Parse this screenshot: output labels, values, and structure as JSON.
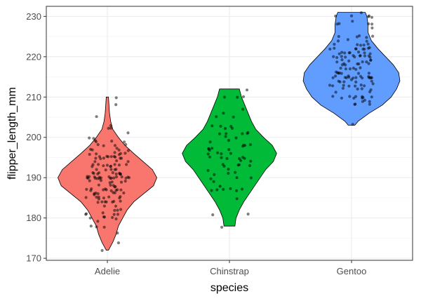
{
  "chart_data": {
    "type": "violin",
    "title": "",
    "xlabel": "species",
    "ylabel": "flipper_length_mm",
    "ylim": [
      169.5,
      232.5
    ],
    "yticks": [
      170,
      180,
      190,
      200,
      210,
      220,
      230
    ],
    "grid": true,
    "categories": [
      "Adelie",
      "Chinstrap",
      "Gentoo"
    ],
    "colors": {
      "Adelie": "#F8766D",
      "Chinstrap": "#00BA38",
      "Gentoo": "#619CFF"
    },
    "violins": [
      {
        "species": "Adelie",
        "color": "#F8766D",
        "min": 172,
        "max": 210,
        "profile": [
          [
            172,
            0.02
          ],
          [
            174,
            0.1
          ],
          [
            176,
            0.16
          ],
          [
            178,
            0.2
          ],
          [
            180,
            0.28
          ],
          [
            182,
            0.36
          ],
          [
            184,
            0.48
          ],
          [
            186,
            0.66
          ],
          [
            188,
            0.84
          ],
          [
            190,
            0.9
          ],
          [
            192,
            0.82
          ],
          [
            194,
            0.65
          ],
          [
            196,
            0.48
          ],
          [
            198,
            0.32
          ],
          [
            200,
            0.2
          ],
          [
            202,
            0.1
          ],
          [
            204,
            0.06
          ],
          [
            206,
            0.04
          ],
          [
            208,
            0.03
          ],
          [
            210,
            0.02
          ]
        ]
      },
      {
        "species": "Chinstrap",
        "color": "#00BA38",
        "min": 178,
        "max": 212,
        "profile": [
          [
            178,
            0.1
          ],
          [
            180,
            0.12
          ],
          [
            182,
            0.18
          ],
          [
            184,
            0.26
          ],
          [
            186,
            0.36
          ],
          [
            188,
            0.46
          ],
          [
            190,
            0.56
          ],
          [
            192,
            0.66
          ],
          [
            194,
            0.8
          ],
          [
            196,
            0.86
          ],
          [
            198,
            0.78
          ],
          [
            200,
            0.62
          ],
          [
            202,
            0.48
          ],
          [
            204,
            0.4
          ],
          [
            206,
            0.34
          ],
          [
            208,
            0.28
          ],
          [
            210,
            0.22
          ],
          [
            212,
            0.18
          ]
        ]
      },
      {
        "species": "Gentoo",
        "color": "#619CFF",
        "min": 203,
        "max": 231,
        "profile": [
          [
            203,
            0.06
          ],
          [
            204,
            0.12
          ],
          [
            206,
            0.32
          ],
          [
            208,
            0.56
          ],
          [
            210,
            0.72
          ],
          [
            212,
            0.82
          ],
          [
            214,
            0.88
          ],
          [
            216,
            0.86
          ],
          [
            218,
            0.76
          ],
          [
            220,
            0.62
          ],
          [
            222,
            0.48
          ],
          [
            224,
            0.36
          ],
          [
            226,
            0.3
          ],
          [
            228,
            0.3
          ],
          [
            230,
            0.28
          ],
          [
            231,
            0.25
          ]
        ]
      }
    ],
    "points": {
      "Adelie": [
        181,
        186,
        195,
        193,
        190,
        181,
        195,
        193,
        190,
        186,
        180,
        182,
        191,
        198,
        185,
        195,
        197,
        184,
        194,
        174,
        180,
        189,
        185,
        180,
        187,
        183,
        187,
        172,
        180,
        178,
        178,
        188,
        184,
        195,
        196,
        190,
        180,
        181,
        184,
        182,
        195,
        186,
        196,
        185,
        190,
        182,
        179,
        190,
        191,
        186,
        188,
        190,
        200,
        187,
        191,
        186,
        193,
        181,
        194,
        185,
        195,
        185,
        192,
        184,
        192,
        195,
        188,
        190,
        198,
        190,
        190,
        196,
        197,
        190,
        195,
        191,
        184,
        187,
        195,
        189,
        196,
        187,
        193,
        191,
        194,
        190,
        189,
        189,
        190,
        202,
        205,
        185,
        186,
        187,
        208,
        190,
        196,
        178,
        192,
        192,
        203,
        183,
        190,
        193,
        184,
        199,
        190,
        181,
        197,
        198,
        191,
        193,
        197,
        191,
        196,
        188,
        199,
        189,
        189,
        187,
        198,
        176,
        202,
        186,
        199,
        191,
        195,
        191,
        210,
        190,
        197,
        193,
        199,
        187,
        190,
        191,
        200,
        185,
        193,
        193,
        187,
        188,
        190,
        192,
        185,
        190,
        184,
        195,
        193,
        187,
        201
      ],
      "Chinstrap": [
        192,
        196,
        193,
        188,
        197,
        198,
        178,
        197,
        195,
        198,
        193,
        194,
        185,
        201,
        190,
        201,
        197,
        181,
        190,
        195,
        181,
        191,
        187,
        193,
        195,
        197,
        200,
        200,
        191,
        205,
        187,
        201,
        187,
        203,
        195,
        199,
        195,
        210,
        192,
        205,
        210,
        187,
        196,
        196,
        196,
        201,
        190,
        212,
        187,
        198,
        199,
        201,
        193,
        203,
        187,
        197,
        191,
        203,
        202,
        194,
        206,
        189,
        195,
        207,
        202,
        193,
        210,
        198
      ],
      "Gentoo": [
        211,
        230,
        210,
        218,
        215,
        210,
        211,
        219,
        209,
        215,
        214,
        216,
        214,
        213,
        210,
        217,
        210,
        210,
        217,
        213,
        210,
        209,
        210,
        213,
        212,
        213,
        215,
        217,
        208,
        215,
        219,
        214,
        220,
        213,
        218,
        208,
        224,
        210,
        221,
        212,
        209,
        215,
        223,
        210,
        213,
        224,
        216,
        220,
        218,
        216,
        222,
        213,
        220,
        215,
        228,
        219,
        218,
        215,
        218,
        222,
        220,
        224,
        216,
        223,
        221,
        222,
        219,
        216,
        219,
        214,
        225,
        230,
        222,
        214,
        220,
        228,
        217,
        213,
        215,
        215,
        221,
        222,
        215,
        228,
        215,
        216,
        220,
        225,
        215,
        230,
        229,
        225,
        221,
        230,
        222,
        217,
        219,
        220,
        222,
        220,
        215,
        225,
        221,
        220,
        223,
        219,
        223,
        221,
        218,
        225,
        220,
        228,
        217,
        220,
        230,
        214,
        215,
        222,
        231,
        216,
        212,
        215,
        212,
        221,
        227,
        221,
        208,
        223,
        203
      ]
    }
  }
}
